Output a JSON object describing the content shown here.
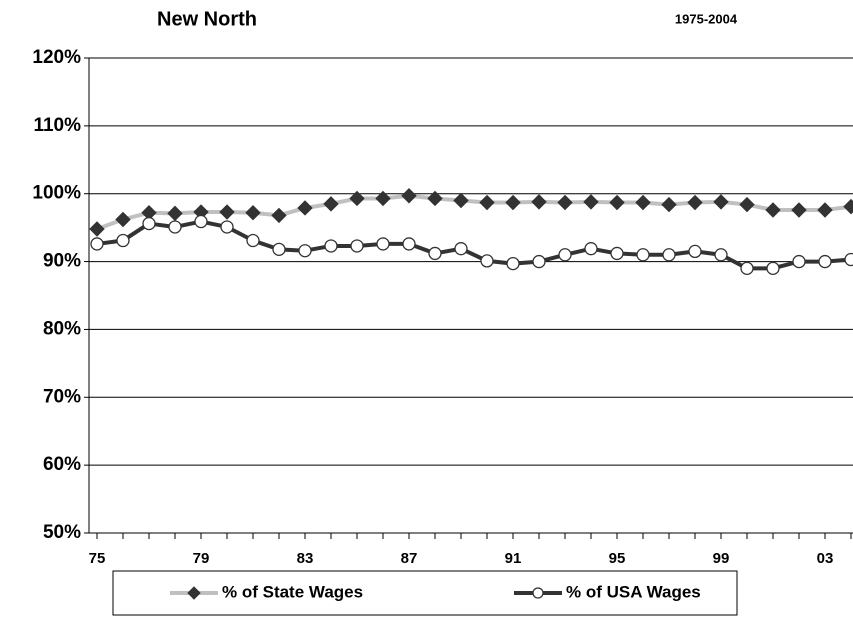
{
  "chart_data": {
    "type": "line",
    "title": "New North",
    "subtitle": "1975-2004",
    "categories": [
      "75",
      null,
      null,
      null,
      "79",
      null,
      null,
      null,
      "83",
      null,
      null,
      null,
      "87",
      null,
      null,
      null,
      "91",
      null,
      null,
      null,
      "95",
      null,
      null,
      null,
      "99",
      null,
      null,
      null,
      "03",
      null
    ],
    "series": [
      {
        "name": "% of State Wages",
        "color": "#c0c0c0",
        "marker": "diamond",
        "marker_color": "#333333",
        "values": [
          94.8,
          96.2,
          97.2,
          97.1,
          97.3,
          97.3,
          97.2,
          96.8,
          97.9,
          98.5,
          99.3,
          99.3,
          99.7,
          99.3,
          99.0,
          98.7,
          98.7,
          98.8,
          98.7,
          98.8,
          98.7,
          98.7,
          98.4,
          98.7,
          98.8,
          98.4,
          97.6,
          97.6,
          97.6,
          98.1
        ]
      },
      {
        "name": "% of USA Wages",
        "color": "#333333",
        "marker": "circle",
        "marker_color": "#ffffff",
        "values": [
          92.6,
          93.1,
          95.6,
          95.1,
          95.9,
          95.1,
          93.1,
          91.8,
          91.6,
          92.3,
          92.3,
          92.6,
          92.6,
          91.2,
          91.9,
          90.1,
          89.7,
          90.0,
          91.0,
          91.9,
          91.2,
          91.0,
          91.0,
          91.5,
          91.0,
          89.0,
          89.0,
          90.0,
          90.0,
          90.3
        ]
      }
    ],
    "ylim": [
      50,
      120
    ],
    "yticks": [
      {
        "value": 50,
        "label": "50%"
      },
      {
        "value": 60,
        "label": "60%"
      },
      {
        "value": 70,
        "label": "70%"
      },
      {
        "value": 80,
        "label": "80%"
      },
      {
        "value": 90,
        "label": "90%"
      },
      {
        "value": 100,
        "label": "100%"
      },
      {
        "value": 110,
        "label": "110%"
      },
      {
        "value": 120,
        "label": "120%"
      }
    ],
    "grid": true,
    "legend": "bottom"
  }
}
